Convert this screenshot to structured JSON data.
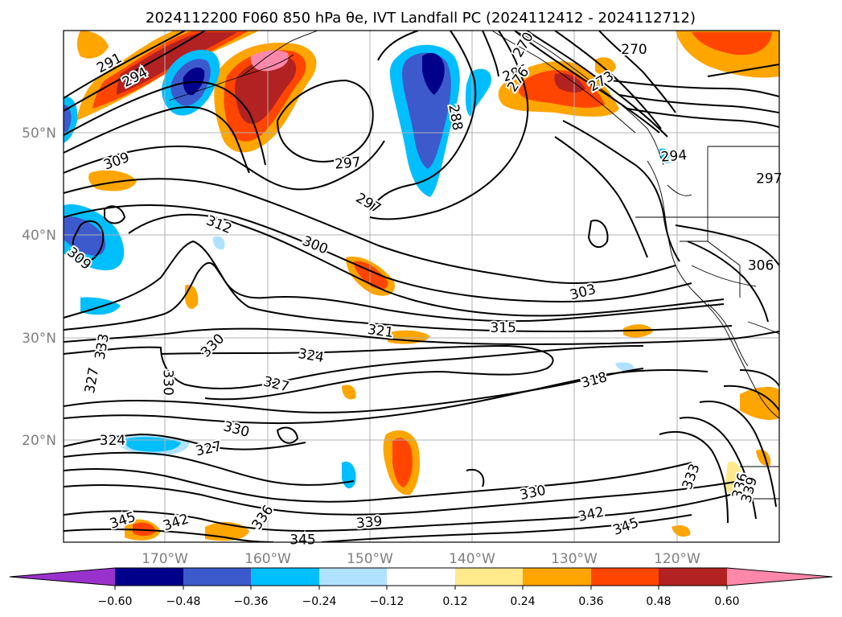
{
  "title": "2024112200 F060 850 hPa θe, IVT Landfall PC (2024112412 - 2024112712)",
  "map": {
    "lon_ticks": [
      "170°W",
      "160°W",
      "150°W",
      "140°W",
      "130°W",
      "120°W"
    ],
    "lat_ticks": [
      "50°N",
      "40°N",
      "30°N",
      "20°N"
    ],
    "extent": {
      "lon": [
        -180,
        -110
      ],
      "lat": [
        10,
        60
      ]
    },
    "grid": true
  },
  "colorbar": {
    "labels": [
      "−0.60",
      "−0.48",
      "−0.36",
      "−0.24",
      "−0.12",
      "0.12",
      "0.24",
      "0.36",
      "0.48",
      "0.60"
    ],
    "colors": [
      "#9932cc",
      "#00008b",
      "#3d5acd",
      "#00bfff",
      "#b0e2ff",
      "#ffffff",
      "#ffe98b",
      "#ffa500",
      "#ff4500",
      "#b22222",
      "#ff88aa"
    ],
    "extend": "both"
  },
  "contour_labels": [
    {
      "text": "291",
      "lon": -175.5,
      "lat": 56.8,
      "rot": -28
    },
    {
      "text": "294",
      "lon": -173.0,
      "lat": 55.4,
      "rot": -28
    },
    {
      "text": "309",
      "lon": -174.8,
      "lat": 47.2,
      "rot": -20
    },
    {
      "text": "309",
      "lon": -178.5,
      "lat": 37.7,
      "rot": 40
    },
    {
      "text": "297",
      "lon": -152.2,
      "lat": 47.0,
      "rot": -5
    },
    {
      "text": "297",
      "lon": -150.2,
      "lat": 43.1,
      "rot": 30
    },
    {
      "text": "312",
      "lon": -164.8,
      "lat": 41.0,
      "rot": 22
    },
    {
      "text": "300",
      "lon": -155.4,
      "lat": 39.0,
      "rot": 22
    },
    {
      "text": "288",
      "lon": -141.7,
      "lat": 51.5,
      "rot": 80
    },
    {
      "text": "285",
      "lon": -135.8,
      "lat": 55.8,
      "rot": -20
    },
    {
      "text": "270",
      "lon": -124.2,
      "lat": 58.1,
      "rot": 0
    },
    {
      "text": "294",
      "lon": -120.3,
      "lat": 47.7,
      "rot": -5
    },
    {
      "text": "306",
      "lon": -111.8,
      "lat": 37.0,
      "rot": 0
    },
    {
      "text": "303",
      "lon": -129.2,
      "lat": 34.4,
      "rot": -15
    },
    {
      "text": "315",
      "lon": -137.0,
      "lat": 30.9,
      "rot": 0
    },
    {
      "text": "321",
      "lon": -149.0,
      "lat": 30.6,
      "rot": 8
    },
    {
      "text": "324",
      "lon": -155.8,
      "lat": 28.2,
      "rot": 10
    },
    {
      "text": "327",
      "lon": -159.2,
      "lat": 25.4,
      "rot": 14
    },
    {
      "text": "330",
      "lon": -165.4,
      "lat": 29.2,
      "rot": -45
    },
    {
      "text": "333",
      "lon": -176.2,
      "lat": 29.1,
      "rot": -80
    },
    {
      "text": "327",
      "lon": -177.2,
      "lat": 25.8,
      "rot": -80
    },
    {
      "text": "330",
      "lon": -169.8,
      "lat": 25.6,
      "rot": 90
    },
    {
      "text": "330",
      "lon": -163.1,
      "lat": 21.0,
      "rot": 15
    },
    {
      "text": "324",
      "lon": -175.2,
      "lat": 19.9,
      "rot": 0
    },
    {
      "text": "327",
      "lon": -165.8,
      "lat": 19.1,
      "rot": -12
    },
    {
      "text": "336",
      "lon": -160.5,
      "lat": 12.4,
      "rot": -55
    },
    {
      "text": "345",
      "lon": -174.2,
      "lat": 12.1,
      "rot": -18
    },
    {
      "text": "342",
      "lon": -169.0,
      "lat": 11.9,
      "rot": -18
    },
    {
      "text": "345",
      "lon": -156.6,
      "lat": 10.2,
      "rot": 0
    },
    {
      "text": "339",
      "lon": -150.1,
      "lat": 11.9,
      "rot": -5
    },
    {
      "text": "330",
      "lon": -134.1,
      "lat": 14.8,
      "rot": -12
    },
    {
      "text": "342",
      "lon": -128.4,
      "lat": 12.7,
      "rot": -12
    },
    {
      "text": "345",
      "lon": -125.0,
      "lat": 11.5,
      "rot": -20
    },
    {
      "text": "318",
      "lon": -128.1,
      "lat": 25.8,
      "rot": -15
    },
    {
      "text": "333",
      "lon": -118.6,
      "lat": 16.4,
      "rot": -70
    },
    {
      "text": "336",
      "lon": -113.8,
      "lat": 15.5,
      "rot": -75
    },
    {
      "text": "339",
      "lon": -112.9,
      "lat": 15.1,
      "rot": -75
    },
    {
      "text": "270",
      "lon": -135.0,
      "lat": 58.6,
      "rot": -60
    },
    {
      "text": "273",
      "lon": -127.4,
      "lat": 55.0,
      "rot": -30
    },
    {
      "text": "276",
      "lon": -135.5,
      "lat": 55.2,
      "rot": -55
    },
    {
      "text": "297",
      "lon": -111.0,
      "lat": 45.5,
      "rot": 0
    }
  ]
}
